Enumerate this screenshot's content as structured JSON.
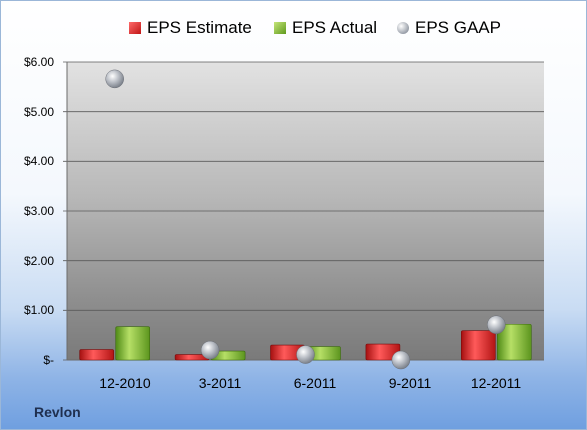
{
  "chart_data": {
    "type": "bar",
    "categories": [
      "12-2010",
      "3-2011",
      "6-2011",
      "9-2011",
      "12-2011"
    ],
    "series": [
      {
        "name": "EPS Estimate",
        "type": "bar",
        "color": "#d92a2a",
        "values": [
          0.21,
          0.11,
          0.3,
          0.32,
          0.59
        ]
      },
      {
        "name": "EPS Actual",
        "type": "bar",
        "color": "#8cbf3c",
        "values": [
          0.67,
          0.18,
          0.27,
          null,
          0.72
        ]
      },
      {
        "name": "EPS GAAP",
        "type": "scatter",
        "color": "#b8bcc4",
        "values": [
          5.66,
          0.2,
          0.11,
          0.0,
          0.71
        ]
      }
    ],
    "yticks": [
      "$6.00",
      "$5.00",
      "$4.00",
      "$3.00",
      "$2.00",
      "$1.00",
      "$-"
    ],
    "ylim": [
      0,
      6
    ],
    "grid": true,
    "legend_position": "top",
    "company": "Revlon"
  }
}
